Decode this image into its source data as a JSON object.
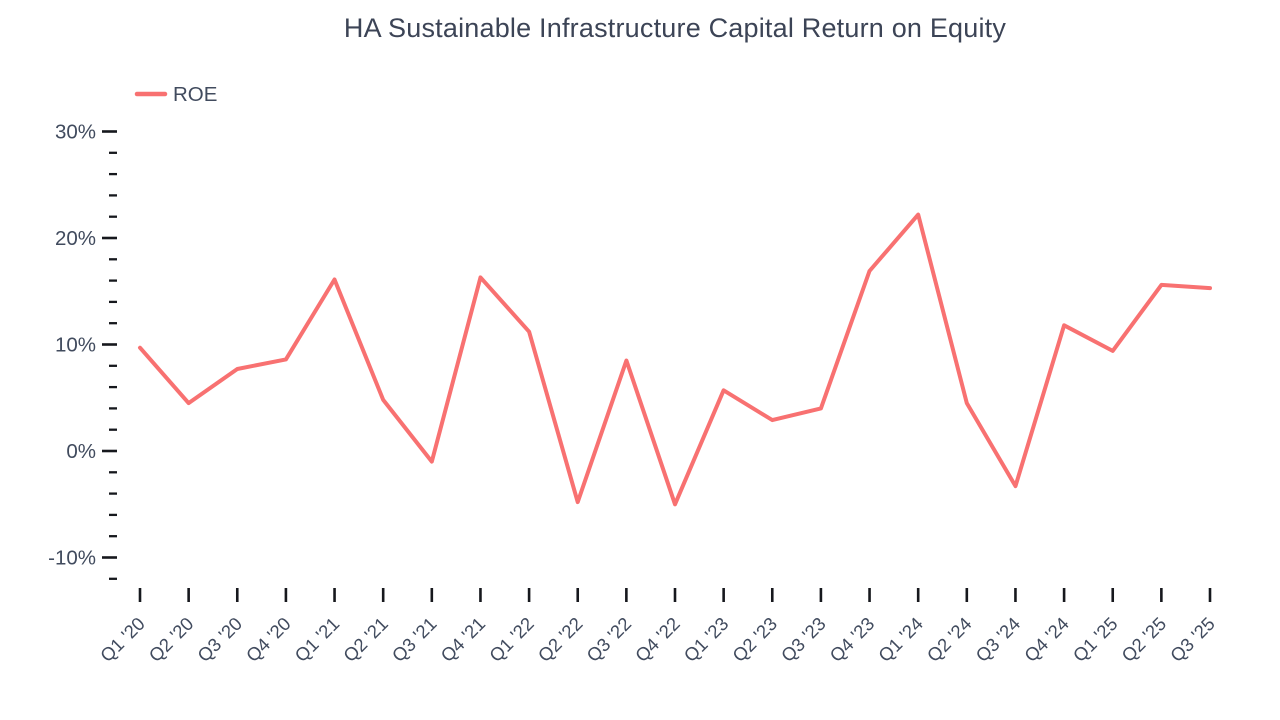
{
  "chart_data": {
    "type": "line",
    "title": "HA Sustainable Infrastructure Capital Return on Equity",
    "categories": [
      "Q1 '20",
      "Q2 '20",
      "Q3 '20",
      "Q4 '20",
      "Q1 '21",
      "Q2 '21",
      "Q3 '21",
      "Q4 '21",
      "Q1 '22",
      "Q2 '22",
      "Q3 '22",
      "Q4 '22",
      "Q1 '23",
      "Q2 '23",
      "Q3 '23",
      "Q4 '23",
      "Q1 '24",
      "Q2 '24",
      "Q3 '24",
      "Q4 '24",
      "Q1 '25",
      "Q2 '25",
      "Q3 '25"
    ],
    "series": [
      {
        "name": "ROE",
        "values": [
          9.7,
          4.5,
          7.7,
          8.6,
          16.1,
          4.8,
          -1.0,
          16.3,
          11.2,
          -4.8,
          8.5,
          -5.0,
          5.7,
          2.9,
          4.0,
          16.9,
          22.2,
          4.5,
          -3.3,
          11.8,
          9.4,
          15.6,
          15.3
        ]
      }
    ],
    "xlabel": "",
    "ylabel": "",
    "y_unit": "%",
    "y_major_ticks": [
      30,
      20,
      10,
      0,
      -10
    ],
    "y_minor_ticks": [
      28,
      26,
      24,
      22,
      18,
      16,
      14,
      12,
      8,
      6,
      4,
      2,
      -2,
      -4,
      -6,
      -8,
      -12
    ],
    "ylim": [
      -12,
      30
    ],
    "grid": false,
    "legend_position": "top-left",
    "colors": {
      "line": "#F87171",
      "title_text": "#3C4456",
      "axis_text": "#414B5E",
      "tick": "#16181D",
      "background": "#FFFFFF"
    }
  }
}
